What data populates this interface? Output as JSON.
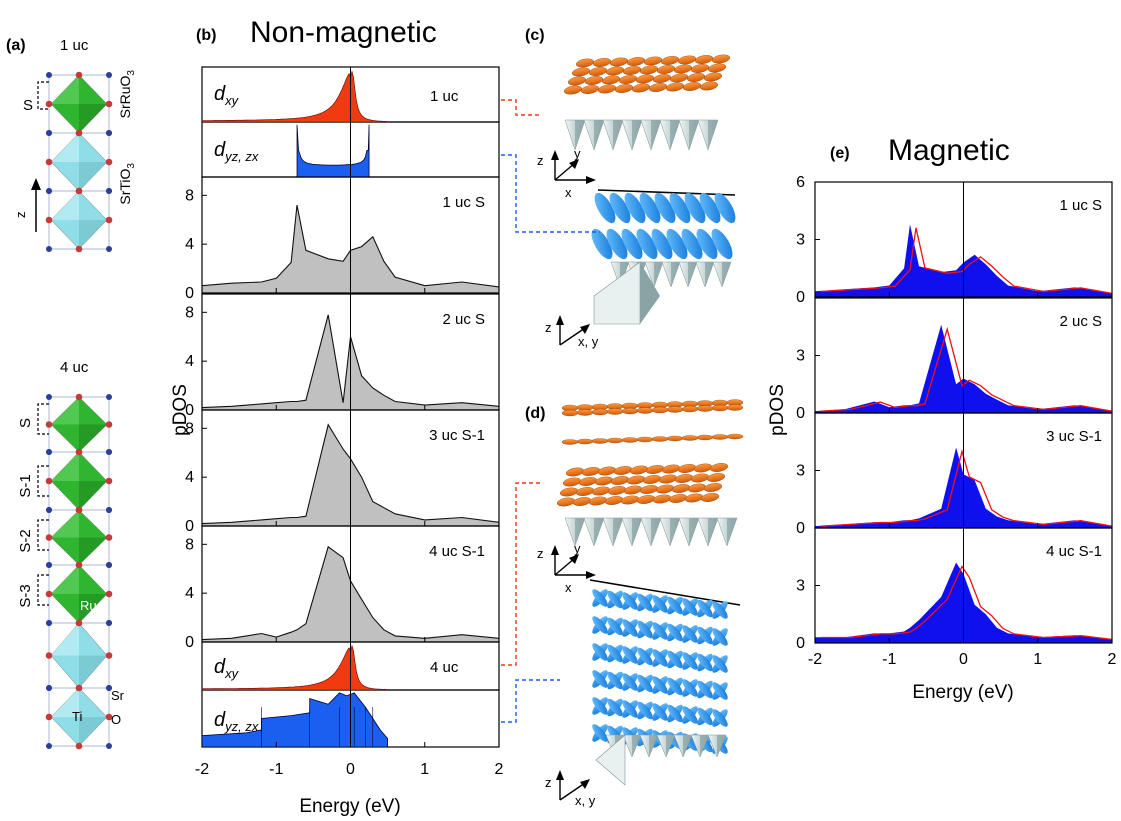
{
  "panel_a": {
    "label": "(a)",
    "top_title": "1 uc",
    "bottom_title": "4 uc",
    "surface_label": "S",
    "layers_4uc": [
      "S",
      "S-1",
      "S-2",
      "S-3"
    ],
    "film_label": "SrRuO",
    "film_sub": "3",
    "substrate_label": "SrTiO",
    "substrate_sub": "3",
    "axis_label": "z",
    "atoms": {
      "ru": "Ru",
      "ti": "Ti",
      "sr": "Sr",
      "o": "O"
    },
    "colors": {
      "ruo6": "#2fb52f",
      "tio6": "#8fdde6",
      "sr_atom": "#2c3f9a",
      "o_atom": "#c83a3a"
    }
  },
  "panel_b": {
    "label": "(b)",
    "title": "Non-magnetic",
    "ylabel": "pDOS",
    "xlabel": "Energy (eV)",
    "xticks": [
      "-2",
      "-1",
      "0",
      "1",
      "2"
    ],
    "yticks": [
      "0",
      "4",
      "8"
    ],
    "orbital_1uc": {
      "d_xy": "d",
      "d_xy_sub": "xy",
      "d_yzzx": "d",
      "d_yzzx_sub": "yz, zx",
      "label": "1 uc"
    },
    "layers": [
      "1 uc S",
      "2 uc S",
      "3 uc S-1",
      "4 uc S-1"
    ],
    "orbital_4uc": {
      "d_xy": "d",
      "d_xy_sub": "xy",
      "d_yzzx": "d",
      "d_yzzx_sub": "yz, zx",
      "label": "4 uc"
    }
  },
  "panel_c": {
    "label": "(c)",
    "axes": {
      "z": "z",
      "y": "y",
      "x": "x",
      "xy": "x,  y"
    }
  },
  "panel_d": {
    "label": "(d)",
    "axes": {
      "z": "z",
      "y": "y",
      "x": "x",
      "xy": "x,  y"
    }
  },
  "panel_e": {
    "label": "(e)",
    "title": "Magnetic",
    "ylabel": "pDOS",
    "xlabel": "Energy (eV)",
    "xticks": [
      "-2",
      "-1",
      "0",
      "1",
      "2"
    ],
    "yticks": [
      "0",
      "3",
      "6"
    ],
    "layers": [
      "1 uc S",
      "2 uc S",
      "3 uc S-1",
      "4 uc S-1"
    ],
    "colors": {
      "majority": "#1010ee",
      "minority": "#ee1111"
    }
  },
  "colors": {
    "dxy": "#f03a10",
    "dyzzx": "#1a5ff0",
    "nonmag_fill": "#c0c0c0"
  },
  "chart_data": [
    {
      "type": "area",
      "title": "Non-magnetic",
      "xlabel": "Energy (eV)",
      "ylabel": "pDOS",
      "xlim": [
        -2,
        2
      ],
      "ylim": [
        0,
        9.5
      ],
      "x": [
        -2.0,
        -1.6,
        -1.2,
        -1.0,
        -0.8,
        -0.72,
        -0.6,
        -0.3,
        -0.1,
        0.0,
        0.15,
        0.3,
        0.45,
        0.6,
        1.0,
        1.5,
        2.0
      ],
      "series": [
        {
          "name": "1 uc S",
          "values": [
            0.6,
            0.8,
            0.9,
            1.2,
            2.5,
            7.2,
            3.5,
            2.8,
            2.6,
            3.5,
            3.8,
            4.6,
            2.6,
            1.3,
            0.6,
            0.9,
            0.5
          ]
        },
        {
          "name": "2 uc S",
          "values": [
            0.2,
            0.3,
            0.5,
            0.6,
            0.7,
            0.7,
            0.8,
            7.8,
            0.6,
            6.0,
            2.8,
            1.8,
            1.2,
            0.7,
            0.4,
            0.6,
            0.3
          ]
        },
        {
          "name": "3 uc S-1",
          "values": [
            0.2,
            0.3,
            0.5,
            0.6,
            0.7,
            0.7,
            0.8,
            8.3,
            6.3,
            5.5,
            4.0,
            2.0,
            1.5,
            1.0,
            0.5,
            0.7,
            0.3
          ]
        },
        {
          "name": "4 uc S-1",
          "values": [
            0.2,
            0.3,
            0.7,
            0.4,
            0.8,
            1.0,
            1.5,
            7.8,
            6.9,
            5.0,
            3.5,
            2.0,
            1.0,
            0.5,
            0.3,
            0.6,
            0.3
          ]
        }
      ]
    },
    {
      "type": "area",
      "title": "Magnetic",
      "xlabel": "Energy (eV)",
      "ylabel": "pDOS",
      "xlim": [
        -2,
        2
      ],
      "ylim": [
        0,
        6
      ],
      "x": [
        -2.0,
        -1.6,
        -1.2,
        -1.0,
        -0.8,
        -0.72,
        -0.6,
        -0.3,
        -0.1,
        0.0,
        0.15,
        0.3,
        0.45,
        0.6,
        1.0,
        1.5,
        2.0
      ],
      "series": [
        {
          "name": "1 uc S",
          "values": [
            0.3,
            0.4,
            0.5,
            0.6,
            1.5,
            3.8,
            1.6,
            1.3,
            1.4,
            1.8,
            2.2,
            1.7,
            1.1,
            0.6,
            0.3,
            0.5,
            0.2
          ]
        },
        {
          "name": "2 uc S",
          "values": [
            0.1,
            0.2,
            0.6,
            0.3,
            0.4,
            0.4,
            0.5,
            4.6,
            1.5,
            1.8,
            1.5,
            1.0,
            0.7,
            0.4,
            0.2,
            0.4,
            0.1
          ]
        },
        {
          "name": "3 uc S-1",
          "values": [
            0.1,
            0.2,
            0.3,
            0.3,
            0.4,
            0.4,
            0.5,
            1.0,
            4.2,
            2.8,
            2.5,
            1.0,
            0.6,
            0.4,
            0.2,
            0.4,
            0.1
          ]
        },
        {
          "name": "4 uc S-1",
          "values": [
            0.3,
            0.3,
            0.5,
            0.5,
            0.6,
            0.8,
            1.2,
            2.4,
            4.2,
            3.6,
            2.0,
            1.5,
            0.8,
            0.5,
            0.3,
            0.4,
            0.2
          ]
        }
      ]
    }
  ]
}
